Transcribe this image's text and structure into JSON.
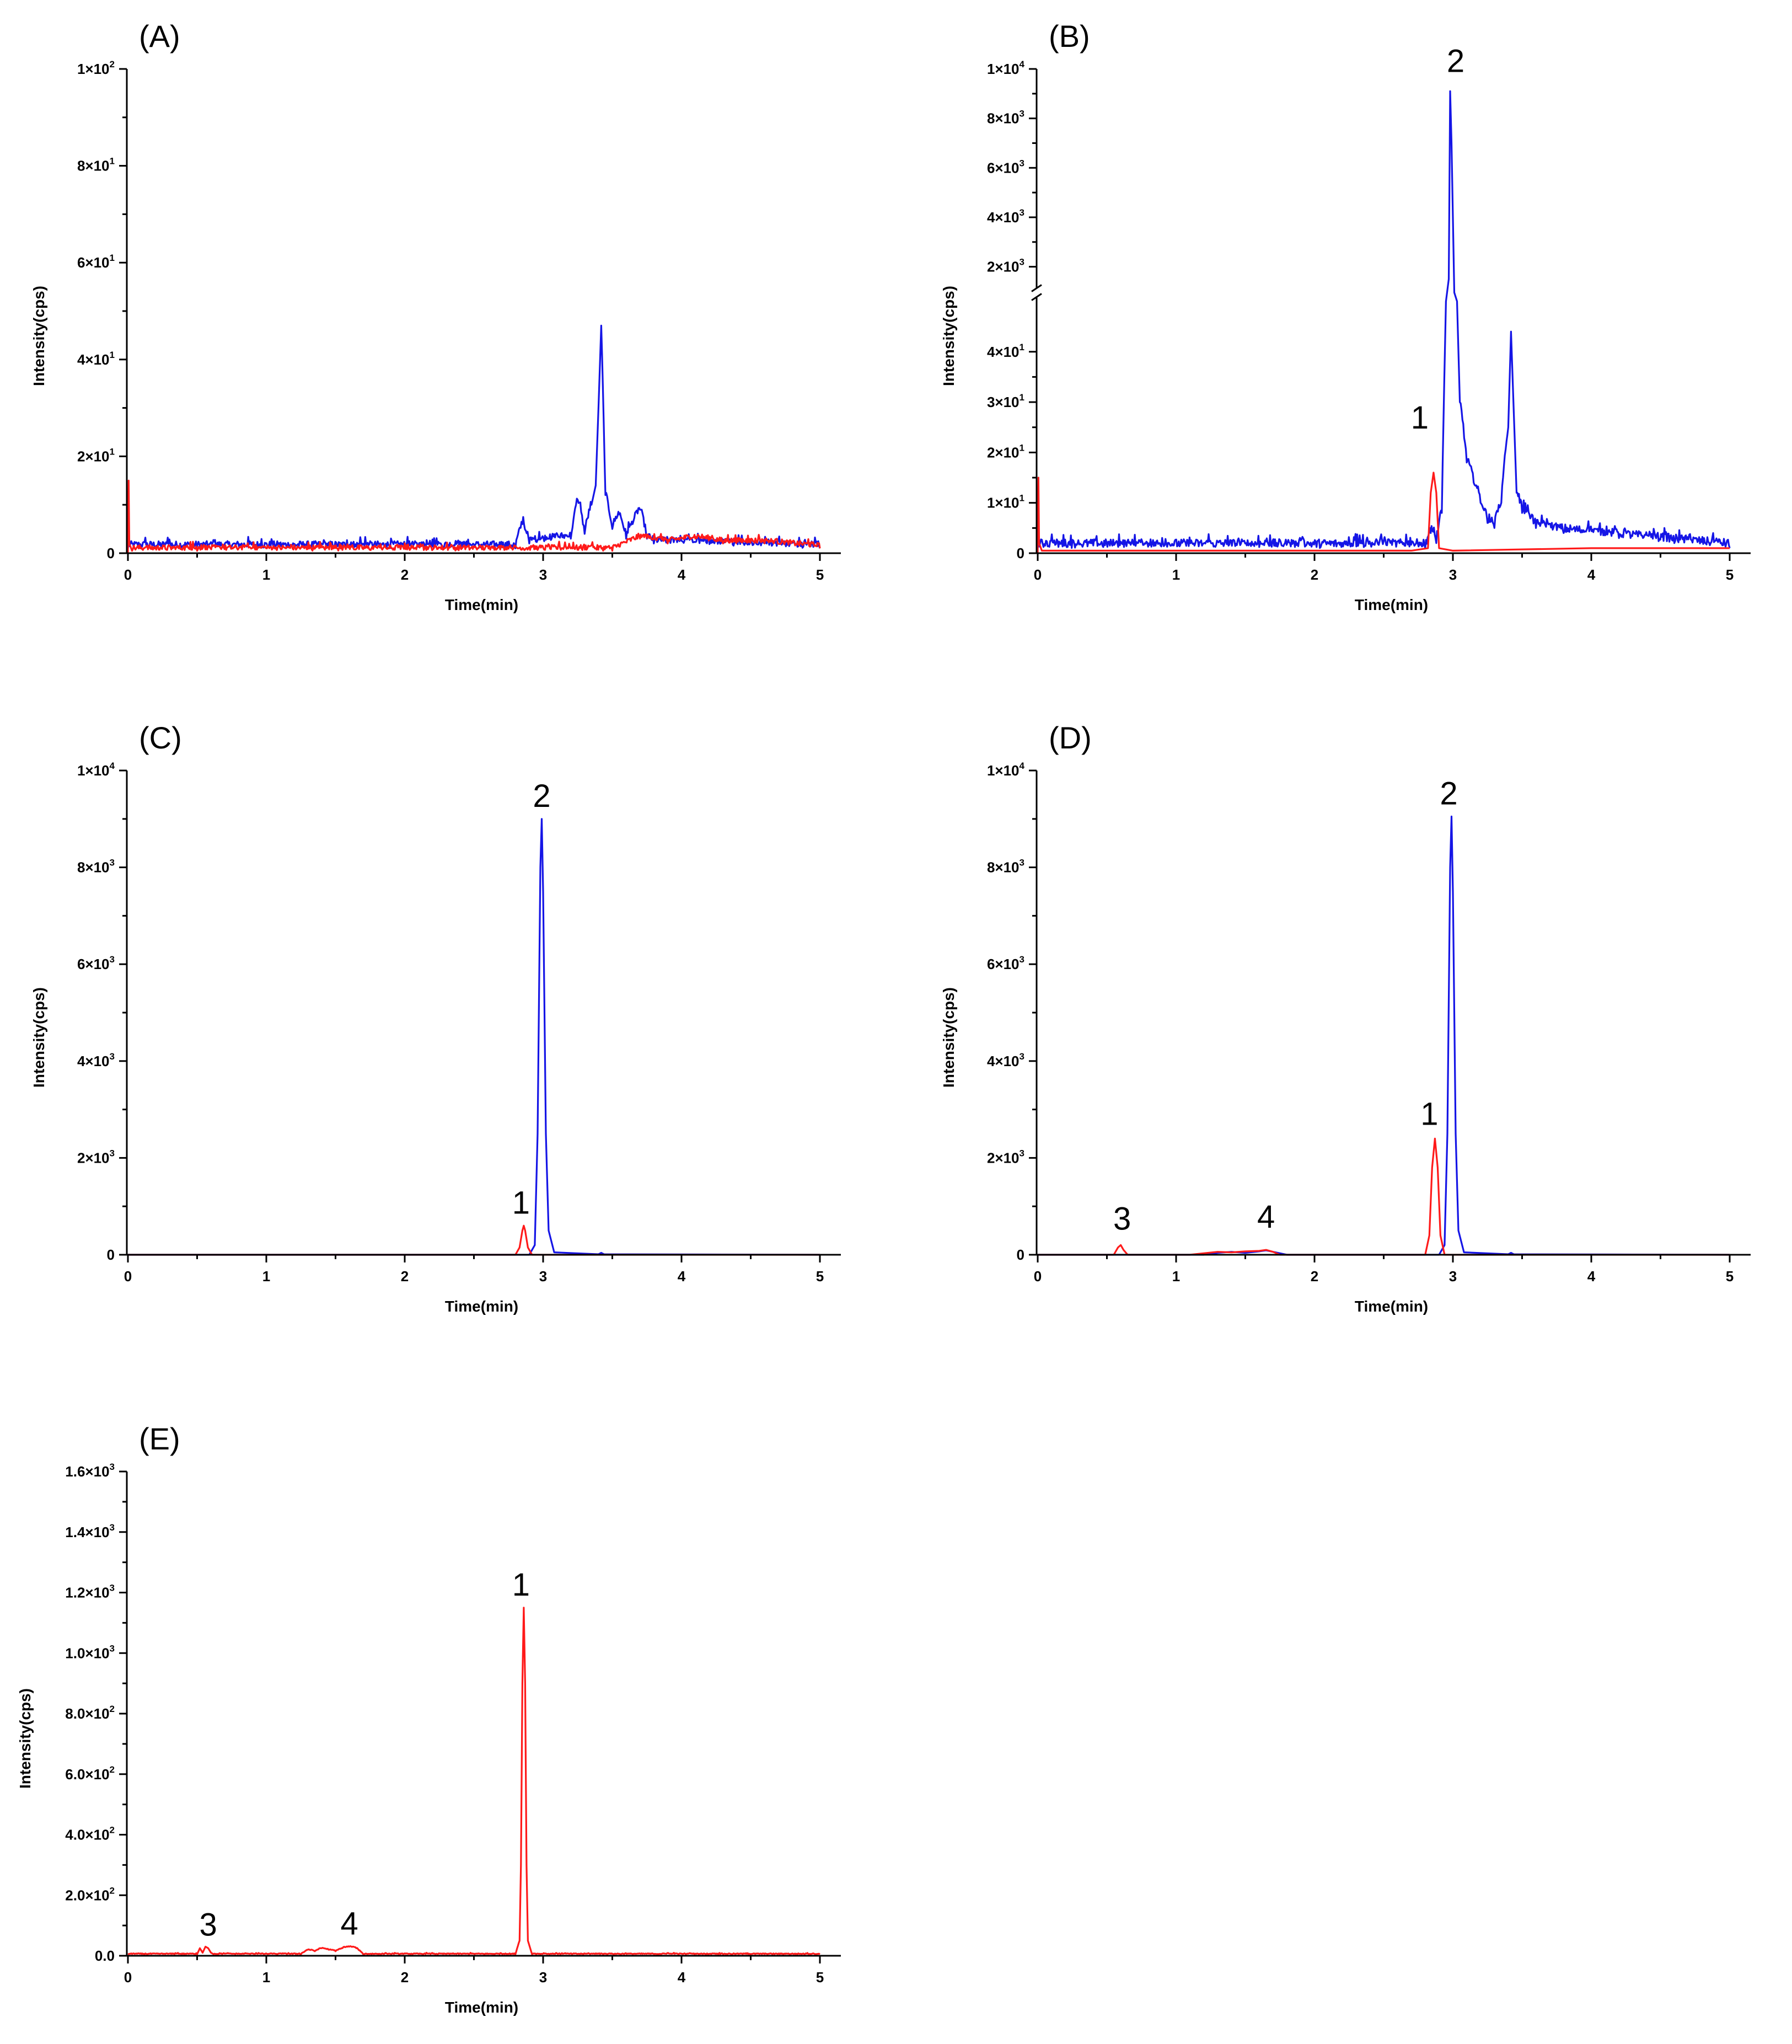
{
  "colors": {
    "red_series": "#ff1a1a",
    "blue_series": "#1515e6",
    "axis": "#000000"
  },
  "chart_data": [
    {
      "type": "line",
      "panel_label": "(A)",
      "xlabel": "Time(min)",
      "ylabel": "Intensity(cps)",
      "xlim": [
        0,
        5
      ],
      "ylim": [
        0,
        100
      ],
      "x_ticks": [
        0,
        1,
        2,
        3,
        4,
        5
      ],
      "x_tick_labels": [
        "0",
        "1",
        "2",
        "3",
        "4",
        "5"
      ],
      "y_ticks": [
        0,
        20,
        40,
        60,
        80,
        100
      ],
      "y_tick_labels": [
        "0",
        "2×10¹",
        "4×10¹",
        "6×10¹",
        "8×10¹",
        "1×10²"
      ],
      "peaks": [],
      "series": [
        {
          "color": "#1515e6",
          "noise": [
            0,
            5,
            2.5
          ],
          "x": [
            0,
            2.8,
            2.85,
            2.9,
            3.2,
            3.25,
            3.3,
            3.35,
            3.38,
            3.4,
            3.42,
            3.45,
            3.5,
            3.55,
            3.6,
            3.7,
            3.75,
            3.8,
            5
          ],
          "y": [
            1,
            1,
            6,
            2,
            3,
            11,
            4,
            10,
            14,
            30,
            47,
            12,
            5,
            8,
            3,
            9,
            3,
            2,
            1
          ]
        },
        {
          "color": "#ff1a1a",
          "noise": [
            0,
            5,
            2
          ],
          "x": [
            0,
            0.005,
            0.01,
            0.03,
            0.5,
            3.5,
            3.7,
            3.9,
            4.1,
            4.3,
            4.6,
            5
          ],
          "y": [
            0,
            15,
            2,
            0.5,
            0.5,
            0.5,
            3,
            2,
            3,
            2,
            2,
            1
          ]
        }
      ]
    },
    {
      "type": "line",
      "panel_label": "(B)",
      "xlabel": "Time(min)",
      "ylabel": "Intensity(cps)",
      "xlim": [
        0,
        5
      ],
      "axis_break": true,
      "ylim_lower": [
        0,
        50
      ],
      "ylim_upper": [
        1000,
        10000
      ],
      "x_ticks": [
        0,
        1,
        2,
        3,
        4,
        5
      ],
      "x_tick_labels": [
        "0",
        "1",
        "2",
        "3",
        "4",
        "5"
      ],
      "y_ticks": [
        0,
        10,
        20,
        30,
        40,
        2000,
        4000,
        6000,
        8000,
        10000
      ],
      "y_tick_labels": [
        "0",
        "1×10¹",
        "2×10¹",
        "3×10¹",
        "4×10¹",
        "2×10³",
        "4×10³",
        "6×10³",
        "8×10³",
        "1×10⁴"
      ],
      "peaks": [
        {
          "label": "1",
          "x": 2.86,
          "y": 16
        },
        {
          "label": "2",
          "x": 2.98,
          "y": 9100
        }
      ],
      "series": [
        {
          "color": "#1515e6",
          "noise": [
            0,
            5,
            3
          ],
          "x": [
            0,
            2.8,
            2.84,
            2.88,
            2.92,
            2.95,
            2.97,
            2.98,
            2.99,
            3.01,
            3.03,
            3.05,
            3.1,
            3.15,
            3.2,
            3.25,
            3.3,
            3.35,
            3.4,
            3.42,
            3.44,
            3.46,
            3.5,
            3.6,
            3.8,
            4.2,
            4.6,
            5
          ],
          "y": [
            1,
            1,
            4,
            2,
            8,
            50,
            1500,
            9100,
            7000,
            600,
            50,
            30,
            18,
            14,
            10,
            6,
            5,
            10,
            25,
            44,
            28,
            12,
            8,
            5,
            4,
            3,
            2,
            1
          ]
        },
        {
          "color": "#ff1a1a",
          "noise": [
            0,
            0,
            0
          ],
          "x": [
            0,
            0.005,
            0.01,
            0.03,
            2.7,
            2.82,
            2.84,
            2.86,
            2.88,
            2.9,
            3.0,
            4.0,
            5
          ],
          "y": [
            0,
            15,
            2,
            0.5,
            0.5,
            1,
            12,
            16,
            12,
            1,
            0.5,
            1,
            1
          ]
        }
      ]
    },
    {
      "type": "line",
      "panel_label": "(C)",
      "xlabel": "Time(min)",
      "ylabel": "Intensity(cps)",
      "xlim": [
        0,
        5
      ],
      "ylim": [
        0,
        10000
      ],
      "x_ticks": [
        0,
        1,
        2,
        3,
        4,
        5
      ],
      "x_tick_labels": [
        "0",
        "1",
        "2",
        "3",
        "4",
        "5"
      ],
      "y_ticks": [
        0,
        2000,
        4000,
        6000,
        8000,
        10000
      ],
      "y_tick_labels": [
        "0",
        "2×10³",
        "4×10³",
        "6×10³",
        "8×10³",
        "1×10⁴"
      ],
      "peaks": [
        {
          "label": "1",
          "x": 2.86,
          "y": 600
        },
        {
          "label": "2",
          "x": 2.99,
          "y": 9000
        }
      ],
      "series": [
        {
          "color": "#1515e6",
          "noise": [
            0,
            0,
            0
          ],
          "x": [
            0,
            2.9,
            2.94,
            2.96,
            2.98,
            2.99,
            3.0,
            3.02,
            3.04,
            3.08,
            3.4,
            3.42,
            3.44,
            5
          ],
          "y": [
            0,
            0,
            200,
            2500,
            8000,
            9000,
            7500,
            2500,
            500,
            50,
            10,
            40,
            10,
            0
          ]
        },
        {
          "color": "#ff1a1a",
          "noise": [
            0,
            0,
            0
          ],
          "x": [
            0,
            2.8,
            2.83,
            2.85,
            2.86,
            2.87,
            2.89,
            2.92,
            5
          ],
          "y": [
            0,
            0,
            150,
            500,
            600,
            500,
            150,
            0,
            0
          ]
        }
      ]
    },
    {
      "type": "line",
      "panel_label": "(D)",
      "xlabel": "Time(min)",
      "ylabel": "Intensity(cps)",
      "xlim": [
        0,
        5
      ],
      "ylim": [
        0,
        10000
      ],
      "x_ticks": [
        0,
        1,
        2,
        3,
        4,
        5
      ],
      "x_tick_labels": [
        "0",
        "1",
        "2",
        "3",
        "4",
        "5"
      ],
      "y_ticks": [
        0,
        2000,
        4000,
        6000,
        8000,
        10000
      ],
      "y_tick_labels": [
        "0",
        "2×10³",
        "4×10³",
        "6×10³",
        "8×10³",
        "1×10⁴"
      ],
      "peaks": [
        {
          "label": "1",
          "x": 2.87,
          "y": 2400
        },
        {
          "label": "2",
          "x": 2.99,
          "y": 9050
        },
        {
          "label": "3",
          "x": 0.59,
          "y": 200
        },
        {
          "label": "4",
          "x": 1.65,
          "y": 100
        }
      ],
      "series": [
        {
          "color": "#1515e6",
          "noise": [
            0,
            0,
            0
          ],
          "x": [
            0,
            1.2,
            1.3,
            1.4,
            1.5,
            1.6,
            1.65,
            1.7,
            1.8,
            2.9,
            2.94,
            2.96,
            2.98,
            2.99,
            3.0,
            3.02,
            3.04,
            3.08,
            3.4,
            3.42,
            3.44,
            5
          ],
          "y": [
            0,
            0,
            40,
            60,
            40,
            70,
            90,
            60,
            0,
            0,
            200,
            2500,
            8000,
            9050,
            7500,
            2500,
            500,
            50,
            10,
            40,
            10,
            0
          ]
        },
        {
          "color": "#ff1a1a",
          "noise": [
            0,
            0,
            0
          ],
          "x": [
            0,
            0.55,
            0.58,
            0.6,
            0.62,
            0.65,
            1.1,
            1.3,
            1.4,
            1.5,
            1.6,
            1.65,
            1.7,
            1.75,
            2.8,
            2.83,
            2.85,
            2.87,
            2.89,
            2.91,
            2.94,
            5
          ],
          "y": [
            0,
            0,
            150,
            200,
            100,
            0,
            0,
            60,
            50,
            70,
            80,
            100,
            60,
            0,
            0,
            400,
            1800,
            2400,
            1800,
            400,
            0,
            0
          ]
        }
      ]
    },
    {
      "type": "line",
      "panel_label": "(E)",
      "xlabel": "Time(min)",
      "ylabel": "Intensity(cps)",
      "xlim": [
        0,
        5
      ],
      "ylim": [
        0,
        1600
      ],
      "x_ticks": [
        0,
        1,
        2,
        3,
        4,
        5
      ],
      "x_tick_labels": [
        "0",
        "1",
        "2",
        "3",
        "4",
        "5"
      ],
      "y_ticks": [
        0,
        200,
        400,
        600,
        800,
        1000,
        1200,
        1400,
        1600
      ],
      "y_tick_labels": [
        "0.0",
        "2.0×10²",
        "4.0×10²",
        "6.0×10²",
        "8.0×10²",
        "1.0×10³",
        "1.2×10³",
        "1.4×10³",
        "1.6×10³"
      ],
      "peaks": [
        {
          "label": "1",
          "x": 2.86,
          "y": 1150
        },
        {
          "label": "3",
          "x": 0.58,
          "y": 30
        },
        {
          "label": "4",
          "x": 1.6,
          "y": 30
        }
      ],
      "series": [
        {
          "color": "#ff1a1a",
          "noise": [
            0,
            5,
            5
          ],
          "x": [
            0,
            0.5,
            0.52,
            0.54,
            0.56,
            0.58,
            0.6,
            0.62,
            1.25,
            1.3,
            1.35,
            1.4,
            1.45,
            1.5,
            1.55,
            1.6,
            1.65,
            1.7,
            2.8,
            2.83,
            2.84,
            2.85,
            2.86,
            2.87,
            2.88,
            2.89,
            2.92,
            5
          ],
          "y": [
            5,
            5,
            25,
            10,
            30,
            25,
            10,
            5,
            5,
            20,
            15,
            25,
            20,
            15,
            25,
            30,
            25,
            5,
            5,
            50,
            300,
            900,
            1150,
            900,
            300,
            50,
            5,
            5
          ]
        }
      ]
    }
  ]
}
